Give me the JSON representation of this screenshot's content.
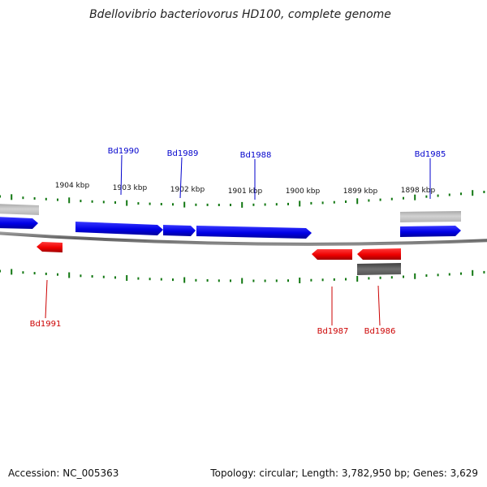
{
  "title": "Bdellovibrio bacteriovorus HD100, complete genome",
  "kbp_labels": [
    "1904 kbp",
    "1903 kbp",
    "1902 kbp",
    "1901 kbp",
    "1900 kbp",
    "1899 kbp",
    "1898 kbp"
  ],
  "genes": [
    {
      "label": "Bd1990",
      "strand": "forward",
      "color": "#0000cc"
    },
    {
      "label": "Bd1989",
      "strand": "forward",
      "color": "#0000cc"
    },
    {
      "label": "Bd1988",
      "strand": "forward",
      "color": "#0000cc"
    },
    {
      "label": "Bd1985",
      "strand": "forward",
      "color": "#0000cc"
    },
    {
      "label": "Bd1991",
      "strand": "reverse",
      "color": "#cc0000"
    },
    {
      "label": "Bd1987",
      "strand": "reverse",
      "color": "#cc0000"
    },
    {
      "label": "Bd1986",
      "strand": "reverse",
      "color": "#cc0000"
    }
  ],
  "colors": {
    "forward_gene": "#0000ee",
    "reverse_gene": "#ee0000",
    "other_forward": "#c0c0c0",
    "other_reverse": "#555555",
    "backbone": "#777777",
    "tick": "#117711"
  },
  "footer": {
    "accession": "Accession: NC_005363",
    "topology": "Topology: circular; Length: 3,782,950 bp; Genes: 3,629"
  }
}
